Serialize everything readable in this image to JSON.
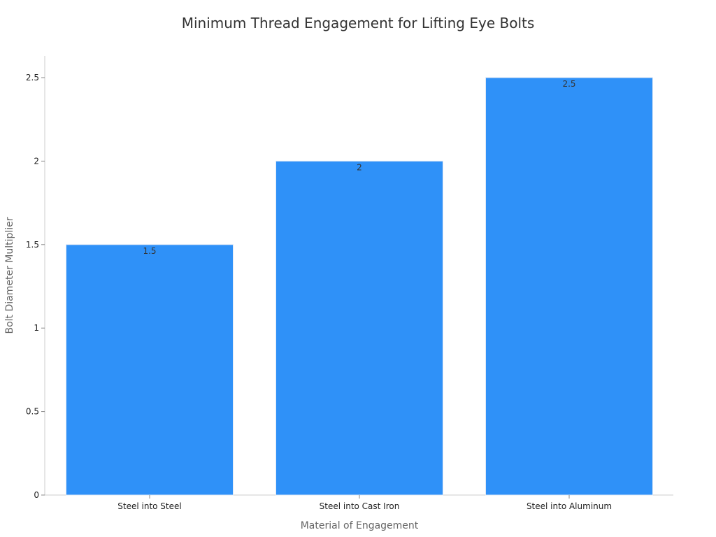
{
  "chart_data": {
    "type": "bar",
    "title": "Minimum Thread Engagement for Lifting Eye Bolts",
    "xlabel": "Material of Engagement",
    "ylabel": "Bolt Diameter Multiplier",
    "categories": [
      "Steel into Steel",
      "Steel into Cast Iron",
      "Steel into Aluminum"
    ],
    "values": [
      1.5,
      2,
      2.5
    ],
    "data_labels": [
      "1.5",
      "2",
      "2.5"
    ],
    "ylim": [
      0,
      2.62
    ],
    "yticks": [
      0,
      0.5,
      1,
      1.5,
      2,
      2.5
    ],
    "ytick_labels": [
      "0",
      "0.5",
      "1",
      "1.5",
      "2",
      "2.5"
    ],
    "bar_color": "#2f91f8",
    "grid": false,
    "legend": "none"
  }
}
